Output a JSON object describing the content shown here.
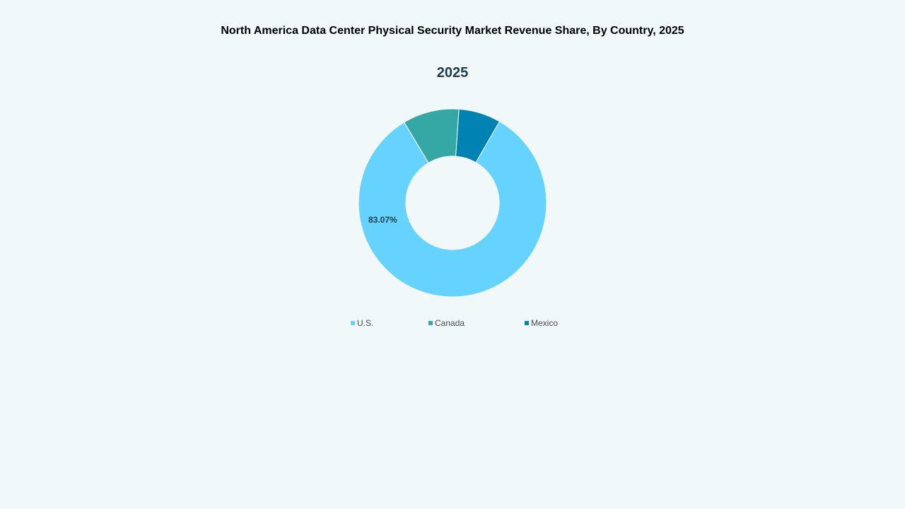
{
  "chart_data": {
    "type": "pie",
    "title": "North America Data Center Physical Security Market Revenue Share, By Country, 2025",
    "subtitle": "2025",
    "donut": true,
    "categories": [
      "U.S.",
      "Canada",
      "Mexico"
    ],
    "values": [
      83.07,
      9.7,
      7.23
    ],
    "value_unit": "%",
    "data_labels": [
      {
        "category": "U.S.",
        "text": "83.07%"
      }
    ],
    "colors": [
      "#66d3ff",
      "#35a8a6",
      "#0082b3"
    ],
    "legend_position": "bottom",
    "start_angle_deg": 30,
    "direction": "clockwise",
    "legend": [
      {
        "label": "U.S.",
        "color": "#66d3ff"
      },
      {
        "label": "Canada",
        "color": "#35a8a6"
      },
      {
        "label": "Mexico",
        "color": "#0082b3"
      }
    ]
  }
}
